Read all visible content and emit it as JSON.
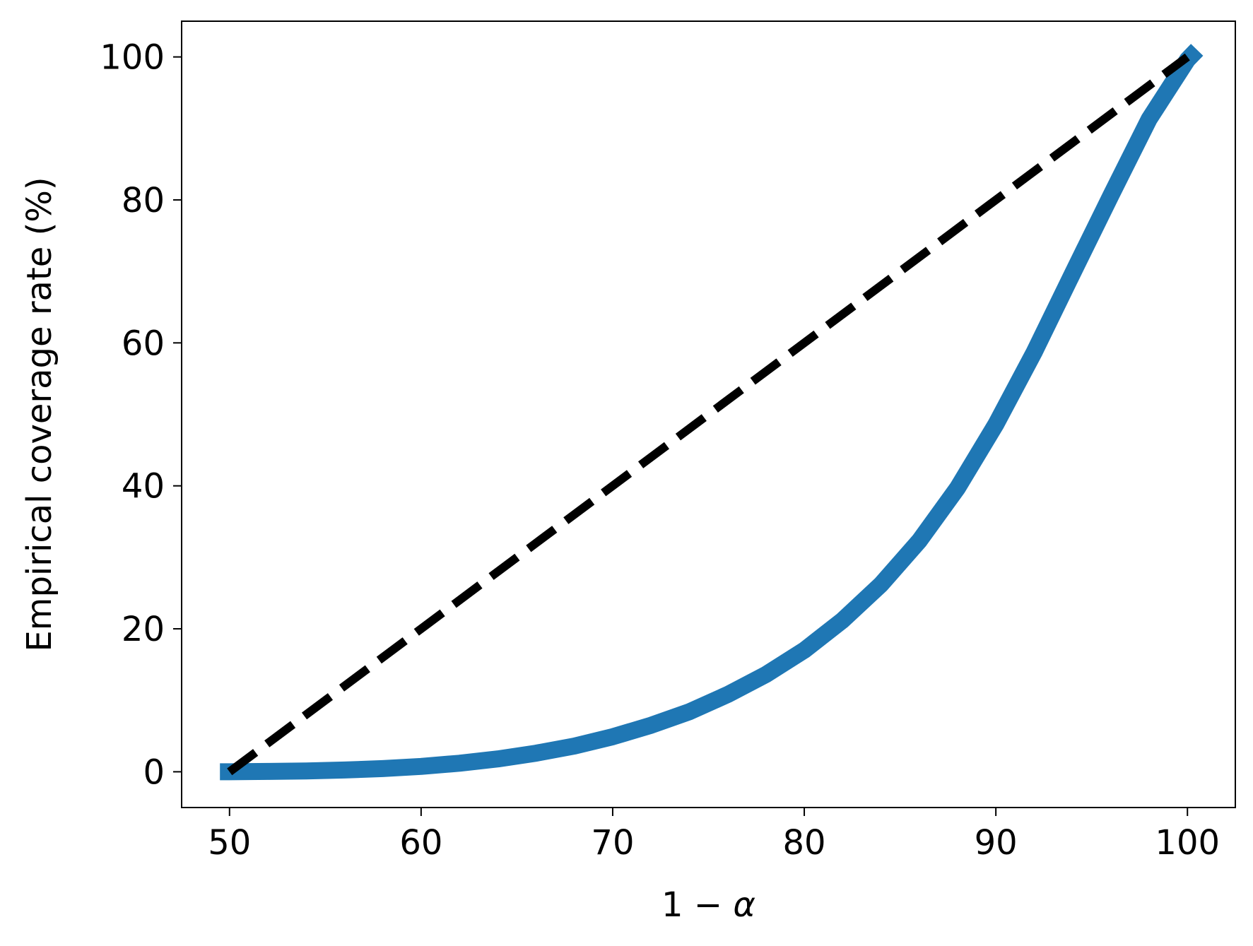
{
  "chart_data": {
    "type": "line",
    "title": "",
    "xlabel_main": "1 − ",
    "xlabel_symbol": "α",
    "ylabel": "Empirical coverage rate (%)",
    "xlim": [
      47.5,
      102.5
    ],
    "ylim": [
      -5,
      105
    ],
    "xticks": [
      50,
      60,
      70,
      80,
      90,
      100
    ],
    "yticks": [
      0,
      20,
      40,
      60,
      80,
      100
    ],
    "grid": false,
    "series": [
      {
        "color": "#1f77b4",
        "style": "solid",
        "x": [
          49.5,
          50,
          52,
          54,
          56,
          58,
          60,
          62,
          64,
          66,
          68,
          70,
          72,
          74,
          76,
          78,
          80,
          82,
          84,
          86,
          88,
          90,
          92,
          94,
          96,
          98,
          100,
          100.5
        ],
        "y": [
          0,
          0,
          0.05,
          0.12,
          0.25,
          0.45,
          0.75,
          1.2,
          1.8,
          2.6,
          3.6,
          4.9,
          6.5,
          8.4,
          10.8,
          13.6,
          17.0,
          21.2,
          26.2,
          32.3,
          39.7,
          48.6,
          58.7,
          69.7,
          80.6,
          91.3,
          99.6,
          101.0
        ]
      },
      {
        "color": "#000000",
        "style": "dashed",
        "x": [
          50,
          100
        ],
        "y": [
          0,
          100
        ]
      }
    ]
  }
}
